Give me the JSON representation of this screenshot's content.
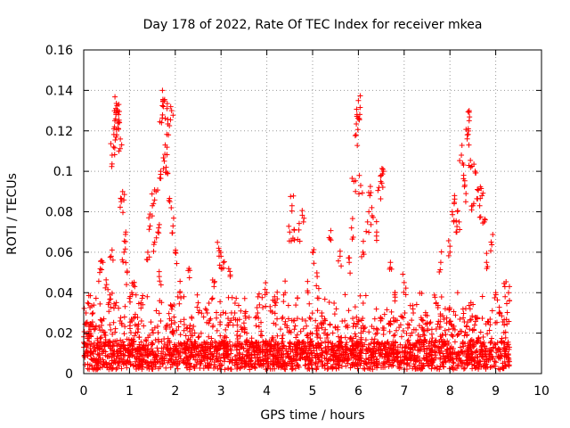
{
  "chart_data": {
    "type": "scatter",
    "title": "Day 178 of 2022, Rate Of TEC Index for receiver mkea",
    "xlabel": "GPS time / hours",
    "ylabel": "ROTI / TECUs",
    "xlim": [
      0,
      10
    ],
    "ylim": [
      0,
      0.16
    ],
    "grid": true,
    "marker": "+",
    "color": "#ff0000",
    "x_ticks": [
      0,
      1,
      2,
      3,
      4,
      5,
      6,
      7,
      8,
      9,
      10
    ],
    "x_tick_labels": [
      "0",
      "1",
      "2",
      "3",
      "4",
      "5",
      "6",
      "7",
      "8",
      "9",
      "10"
    ],
    "y_ticks": [
      0,
      0.02,
      0.04,
      0.06,
      0.08,
      0.1,
      0.12,
      0.14,
      0.16
    ],
    "y_tick_labels": [
      "0",
      "0.02",
      "0.04",
      "0.06",
      "0.08",
      "0.1",
      "0.12",
      "0.14",
      "0.16"
    ],
    "data_extent_hours": [
      0.0,
      9.3
    ],
    "series": [
      {
        "name": "ROTI",
        "points": [
          [
            0.05,
            0.03
          ],
          [
            0.12,
            0.021
          ],
          [
            0.2,
            0.03
          ],
          [
            0.28,
            0.014
          ],
          [
            0.35,
            0.05
          ],
          [
            0.42,
            0.055
          ],
          [
            0.5,
            0.044
          ],
          [
            0.55,
            0.035
          ],
          [
            0.6,
            0.058
          ],
          [
            0.62,
            0.108
          ],
          [
            0.65,
            0.112
          ],
          [
            0.66,
            0.121
          ],
          [
            0.68,
            0.125
          ],
          [
            0.7,
            0.131
          ],
          [
            0.72,
            0.118
          ],
          [
            0.74,
            0.13
          ],
          [
            0.76,
            0.128
          ],
          [
            0.78,
            0.124
          ],
          [
            0.8,
            0.116
          ],
          [
            0.82,
            0.085
          ],
          [
            0.85,
            0.09
          ],
          [
            0.88,
            0.06
          ],
          [
            0.92,
            0.07
          ],
          [
            0.95,
            0.05
          ],
          [
            1.05,
            0.04
          ],
          [
            1.1,
            0.045
          ],
          [
            1.25,
            0.035
          ],
          [
            1.4,
            0.06
          ],
          [
            1.45,
            0.073
          ],
          [
            1.5,
            0.083
          ],
          [
            1.55,
            0.065
          ],
          [
            1.58,
            0.09
          ],
          [
            1.62,
            0.07
          ],
          [
            1.65,
            0.048
          ],
          [
            1.68,
            0.1
          ],
          [
            1.7,
            0.124
          ],
          [
            1.72,
            0.14
          ],
          [
            1.74,
            0.132
          ],
          [
            1.76,
            0.105
          ],
          [
            1.78,
            0.113
          ],
          [
            1.8,
            0.102
          ],
          [
            1.82,
            0.131
          ],
          [
            1.85,
            0.118
          ],
          [
            1.88,
            0.085
          ],
          [
            1.92,
            0.13
          ],
          [
            1.95,
            0.073
          ],
          [
            2.0,
            0.06
          ],
          [
            2.1,
            0.04
          ],
          [
            2.3,
            0.052
          ],
          [
            2.5,
            0.035
          ],
          [
            2.7,
            0.03
          ],
          [
            2.85,
            0.045
          ],
          [
            2.95,
            0.062
          ],
          [
            3.0,
            0.058
          ],
          [
            3.05,
            0.055
          ],
          [
            3.2,
            0.048
          ],
          [
            3.3,
            0.03
          ],
          [
            3.5,
            0.025
          ],
          [
            3.8,
            0.03
          ],
          [
            4.0,
            0.04
          ],
          [
            4.2,
            0.035
          ],
          [
            4.4,
            0.04
          ],
          [
            4.5,
            0.07
          ],
          [
            4.55,
            0.083
          ],
          [
            4.6,
            0.066
          ],
          [
            4.7,
            0.071
          ],
          [
            4.8,
            0.075
          ],
          [
            4.9,
            0.04
          ],
          [
            5.0,
            0.06
          ],
          [
            5.1,
            0.048
          ],
          [
            5.2,
            0.03
          ],
          [
            5.4,
            0.066
          ],
          [
            5.6,
            0.058
          ],
          [
            5.8,
            0.055
          ],
          [
            5.85,
            0.072
          ],
          [
            5.9,
            0.095
          ],
          [
            5.95,
            0.118
          ],
          [
            5.97,
            0.128
          ],
          [
            6.0,
            0.135
          ],
          [
            6.02,
            0.126
          ],
          [
            6.05,
            0.093
          ],
          [
            6.1,
            0.06
          ],
          [
            6.2,
            0.075
          ],
          [
            6.25,
            0.088
          ],
          [
            6.3,
            0.078
          ],
          [
            6.4,
            0.07
          ],
          [
            6.45,
            0.092
          ],
          [
            6.5,
            0.098
          ],
          [
            6.55,
            0.1
          ],
          [
            6.7,
            0.055
          ],
          [
            6.8,
            0.04
          ],
          [
            7.0,
            0.045
          ],
          [
            7.2,
            0.03
          ],
          [
            7.5,
            0.025
          ],
          [
            7.7,
            0.035
          ],
          [
            7.8,
            0.055
          ],
          [
            8.0,
            0.063
          ],
          [
            8.05,
            0.08
          ],
          [
            8.1,
            0.088
          ],
          [
            8.15,
            0.07
          ],
          [
            8.2,
            0.075
          ],
          [
            8.25,
            0.108
          ],
          [
            8.3,
            0.098
          ],
          [
            8.35,
            0.089
          ],
          [
            8.38,
            0.118
          ],
          [
            8.4,
            0.121
          ],
          [
            8.42,
            0.125
          ],
          [
            8.45,
            0.102
          ],
          [
            8.5,
            0.083
          ],
          [
            8.55,
            0.1
          ],
          [
            8.6,
            0.091
          ],
          [
            8.65,
            0.083
          ],
          [
            8.7,
            0.088
          ],
          [
            8.75,
            0.075
          ],
          [
            8.8,
            0.055
          ],
          [
            8.9,
            0.065
          ],
          [
            9.0,
            0.04
          ],
          [
            9.1,
            0.03
          ],
          [
            9.2,
            0.043
          ],
          [
            9.28,
            0.04
          ]
        ]
      }
    ]
  }
}
